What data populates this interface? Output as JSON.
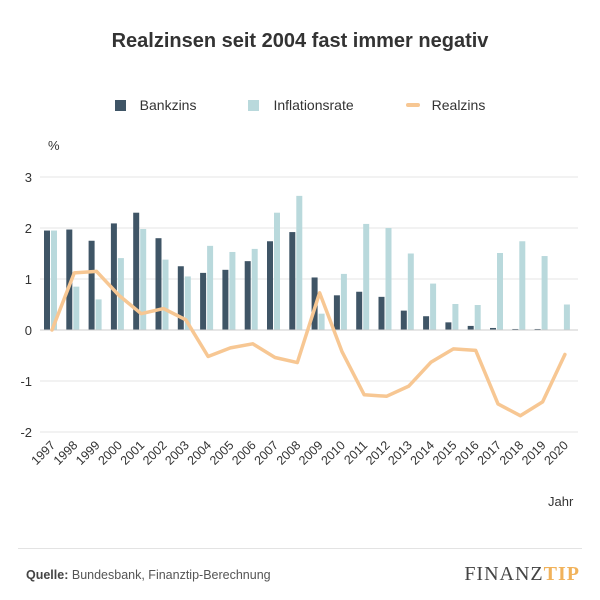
{
  "title": "Realzinsen seit 2004 fast immer negativ",
  "legend": {
    "bankzins": "Bankzins",
    "inflation": "Inflationsrate",
    "realzins": "Realzins"
  },
  "colors": {
    "bankzins": "#3f5566",
    "inflation": "#b9d9dc",
    "realzins": "#f7c793"
  },
  "source": {
    "label": "Quelle:",
    "text": "Bundesbank, Finanztip-Berechnung"
  },
  "logo": {
    "part1": "FINANZ",
    "part2": "TIP"
  },
  "chart_data": {
    "type": "bar",
    "ylabel": "%",
    "xlabel": "Jahr",
    "ylim": [
      -2,
      3
    ],
    "yticks": [
      -2,
      -1,
      0,
      1,
      2,
      3
    ],
    "categories": [
      "1997",
      "1998",
      "1999",
      "2000",
      "2001",
      "2002",
      "2003",
      "2004",
      "2005",
      "2006",
      "2007",
      "2008",
      "2009",
      "2010",
      "2011",
      "2012",
      "2013",
      "2014",
      "2015",
      "2016",
      "2017",
      "2018",
      "2019",
      "2020"
    ],
    "series": [
      {
        "name": "Bankzins",
        "kind": "bar",
        "values": [
          1.95,
          1.97,
          1.75,
          2.09,
          2.3,
          1.8,
          1.25,
          1.12,
          1.18,
          1.35,
          1.74,
          1.92,
          1.03,
          0.68,
          0.75,
          0.65,
          0.38,
          0.27,
          0.15,
          0.08,
          0.04,
          0.02,
          0.02,
          0.0
        ]
      },
      {
        "name": "Inflationsrate",
        "kind": "bar",
        "values": [
          1.95,
          0.85,
          0.6,
          1.41,
          1.98,
          1.38,
          1.05,
          1.65,
          1.53,
          1.59,
          2.3,
          2.63,
          0.32,
          1.1,
          2.08,
          2.0,
          1.5,
          0.91,
          0.51,
          0.49,
          1.51,
          1.74,
          1.45,
          0.5
        ]
      },
      {
        "name": "Realzins",
        "kind": "line",
        "values": [
          0.0,
          1.12,
          1.15,
          0.68,
          0.32,
          0.42,
          0.2,
          -0.52,
          -0.35,
          -0.27,
          -0.54,
          -0.64,
          0.73,
          -0.42,
          -1.27,
          -1.3,
          -1.1,
          -0.63,
          -0.37,
          -0.4,
          -1.45,
          -1.68,
          -1.41,
          -0.48
        ]
      }
    ]
  }
}
